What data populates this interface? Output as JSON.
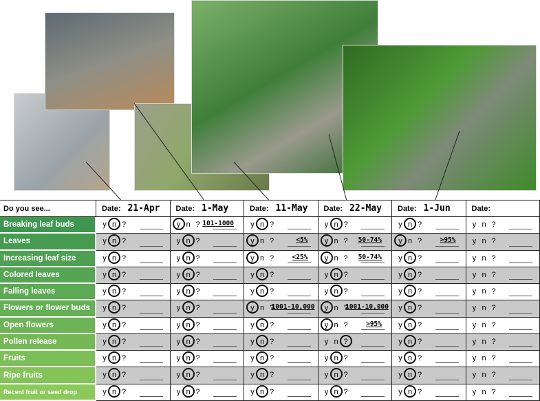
{
  "header": {
    "corner": "Do you see...",
    "date_label": "Date:",
    "dates": [
      "21-Apr",
      "1-May",
      "11-May",
      "22-May",
      "1-Jun"
    ]
  },
  "options": [
    "y",
    "n",
    "?"
  ],
  "rows": [
    {
      "label": "Breaking leaf buds",
      "cells": [
        {
          "circled": "n"
        },
        {
          "circled": "y",
          "note": "101-1000"
        },
        {
          "circled": "n"
        },
        {
          "circled": "n"
        },
        {
          "circled": "n"
        },
        {}
      ]
    },
    {
      "label": "Leaves",
      "cells": [
        {
          "circled": "n"
        },
        {
          "circled": "n"
        },
        {
          "circled": "y",
          "note": "<5%"
        },
        {
          "circled": "y",
          "note": "50-74%"
        },
        {
          "circled": "y",
          "note": ">95%"
        },
        {}
      ]
    },
    {
      "label": "Increasing leaf size",
      "cells": [
        {
          "circled": "n"
        },
        {
          "circled": "n"
        },
        {
          "circled": "y",
          "note": "<25%"
        },
        {
          "circled": "y",
          "note": "50-74%"
        },
        {
          "circled": "n"
        },
        {}
      ]
    },
    {
      "label": "Colored leaves",
      "cells": [
        {
          "circled": "n"
        },
        {
          "circled": "n"
        },
        {
          "circled": "n"
        },
        {
          "circled": "n"
        },
        {
          "circled": "n"
        },
        {}
      ]
    },
    {
      "label": "Falling leaves",
      "cells": [
        {
          "circled": "n"
        },
        {
          "circled": "n"
        },
        {
          "circled": "n"
        },
        {
          "circled": "n"
        },
        {
          "circled": "n"
        },
        {}
      ]
    },
    {
      "label": "Flowers or flower buds",
      "cells": [
        {
          "circled": "n"
        },
        {
          "circled": "n"
        },
        {
          "circled": "y",
          "note": "1001-10,000"
        },
        {
          "circled": "y",
          "note": "1001-10,000"
        },
        {
          "circled": "n"
        },
        {}
      ]
    },
    {
      "label": "Open flowers",
      "cells": [
        {
          "circled": "n"
        },
        {
          "circled": "n"
        },
        {
          "circled": "n"
        },
        {
          "circled": "y",
          "note": ">95%"
        },
        {
          "circled": "n"
        },
        {}
      ]
    },
    {
      "label": "Pollen release",
      "cells": [
        {
          "circled": "n"
        },
        {
          "circled": "n"
        },
        {
          "circled": "n"
        },
        {
          "circled": "?"
        },
        {
          "circled": "n"
        },
        {}
      ]
    },
    {
      "label": "Fruits",
      "cells": [
        {
          "circled": "n"
        },
        {
          "circled": "n"
        },
        {
          "circled": "n"
        },
        {
          "circled": "n"
        },
        {
          "circled": "n"
        },
        {}
      ]
    },
    {
      "label": "Ripe fruits",
      "cells": [
        {
          "circled": "n"
        },
        {
          "circled": "n"
        },
        {
          "circled": "n"
        },
        {
          "circled": "n"
        },
        {
          "circled": "n"
        },
        {}
      ]
    },
    {
      "label": "Recent fruit or seed drop",
      "cells": [
        {
          "circled": "n"
        },
        {
          "circled": "n"
        },
        {
          "circled": "n"
        },
        {
          "circled": "n"
        },
        {
          "circled": "n"
        },
        {}
      ]
    }
  ]
}
